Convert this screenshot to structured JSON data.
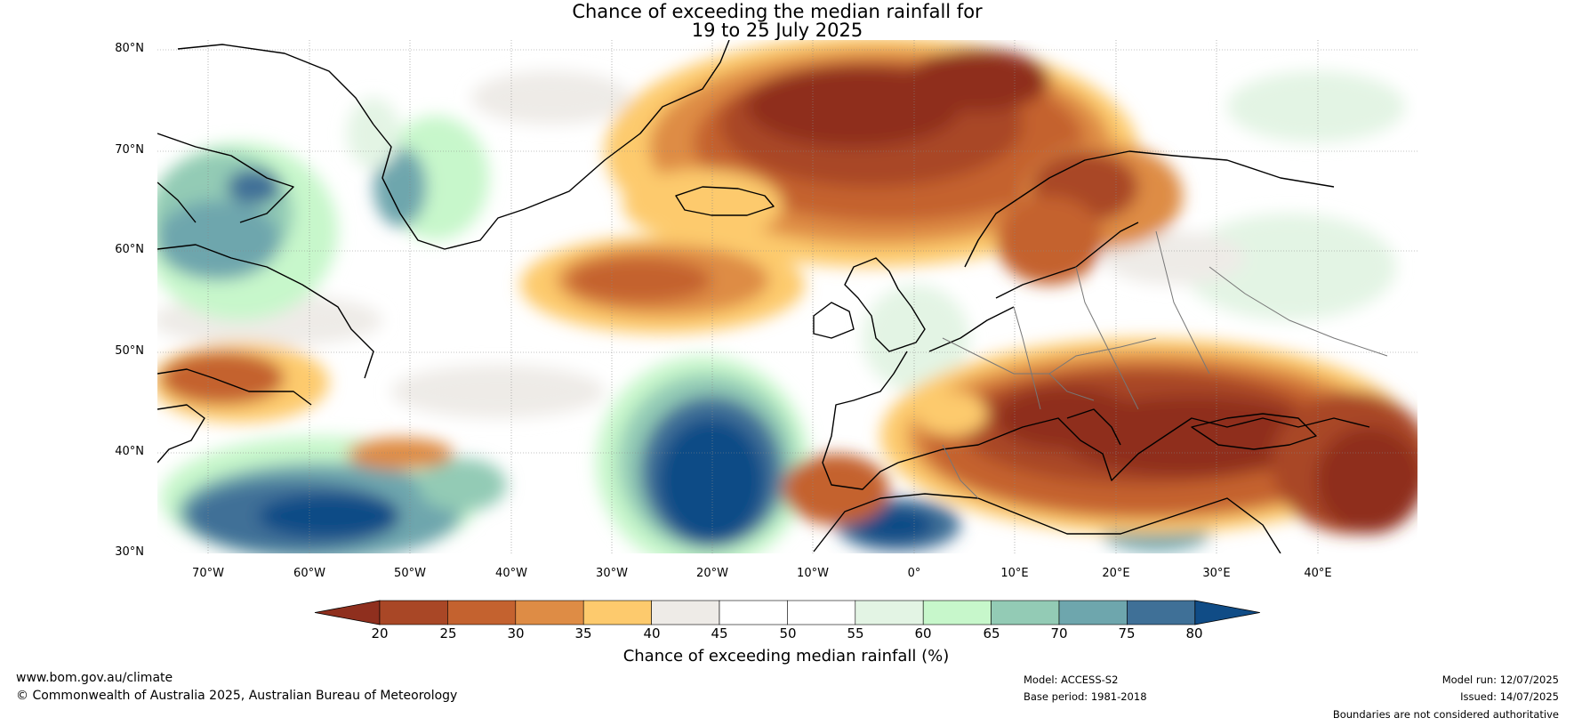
{
  "title_line1": "Chance of exceeding the median rainfall for",
  "title_line2": "19 to 25 July 2025",
  "map": {
    "lat_labels": [
      "80°N",
      "70°N",
      "60°N",
      "50°N",
      "40°N",
      "30°N"
    ],
    "lon_labels": [
      "70°W",
      "60°W",
      "50°W",
      "40°W",
      "30°W",
      "20°W",
      "10°W",
      "0°",
      "10°E",
      "20°E",
      "30°E",
      "40°E"
    ]
  },
  "colorbar": {
    "label": "Chance of exceeding median rainfall (%)",
    "ticks": [
      "20",
      "25",
      "30",
      "35",
      "40",
      "45",
      "50",
      "55",
      "60",
      "65",
      "70",
      "75",
      "80"
    ],
    "colors": [
      "#8f2f1e",
      "#a94726",
      "#c4622f",
      "#de8c45",
      "#fdca6d",
      "#eeebe7",
      "#ffffff",
      "#ffffff",
      "#e3f4e4",
      "#c7f7cb",
      "#93cbb5",
      "#6ea6ad",
      "#3f7097",
      "#104c86"
    ]
  },
  "footer": {
    "website": "www.bom.gov.au/climate",
    "copyright": "© Commonwealth of Australia 2025, Australian Bureau of Meteorology",
    "model": "Model: ACCESS-S2",
    "base_period": "Base period: 1981-2018",
    "model_run": "Model run: 12/07/2025",
    "issued": "Issued: 14/07/2025",
    "disclaimer": "Boundaries are not considered authoritative"
  }
}
